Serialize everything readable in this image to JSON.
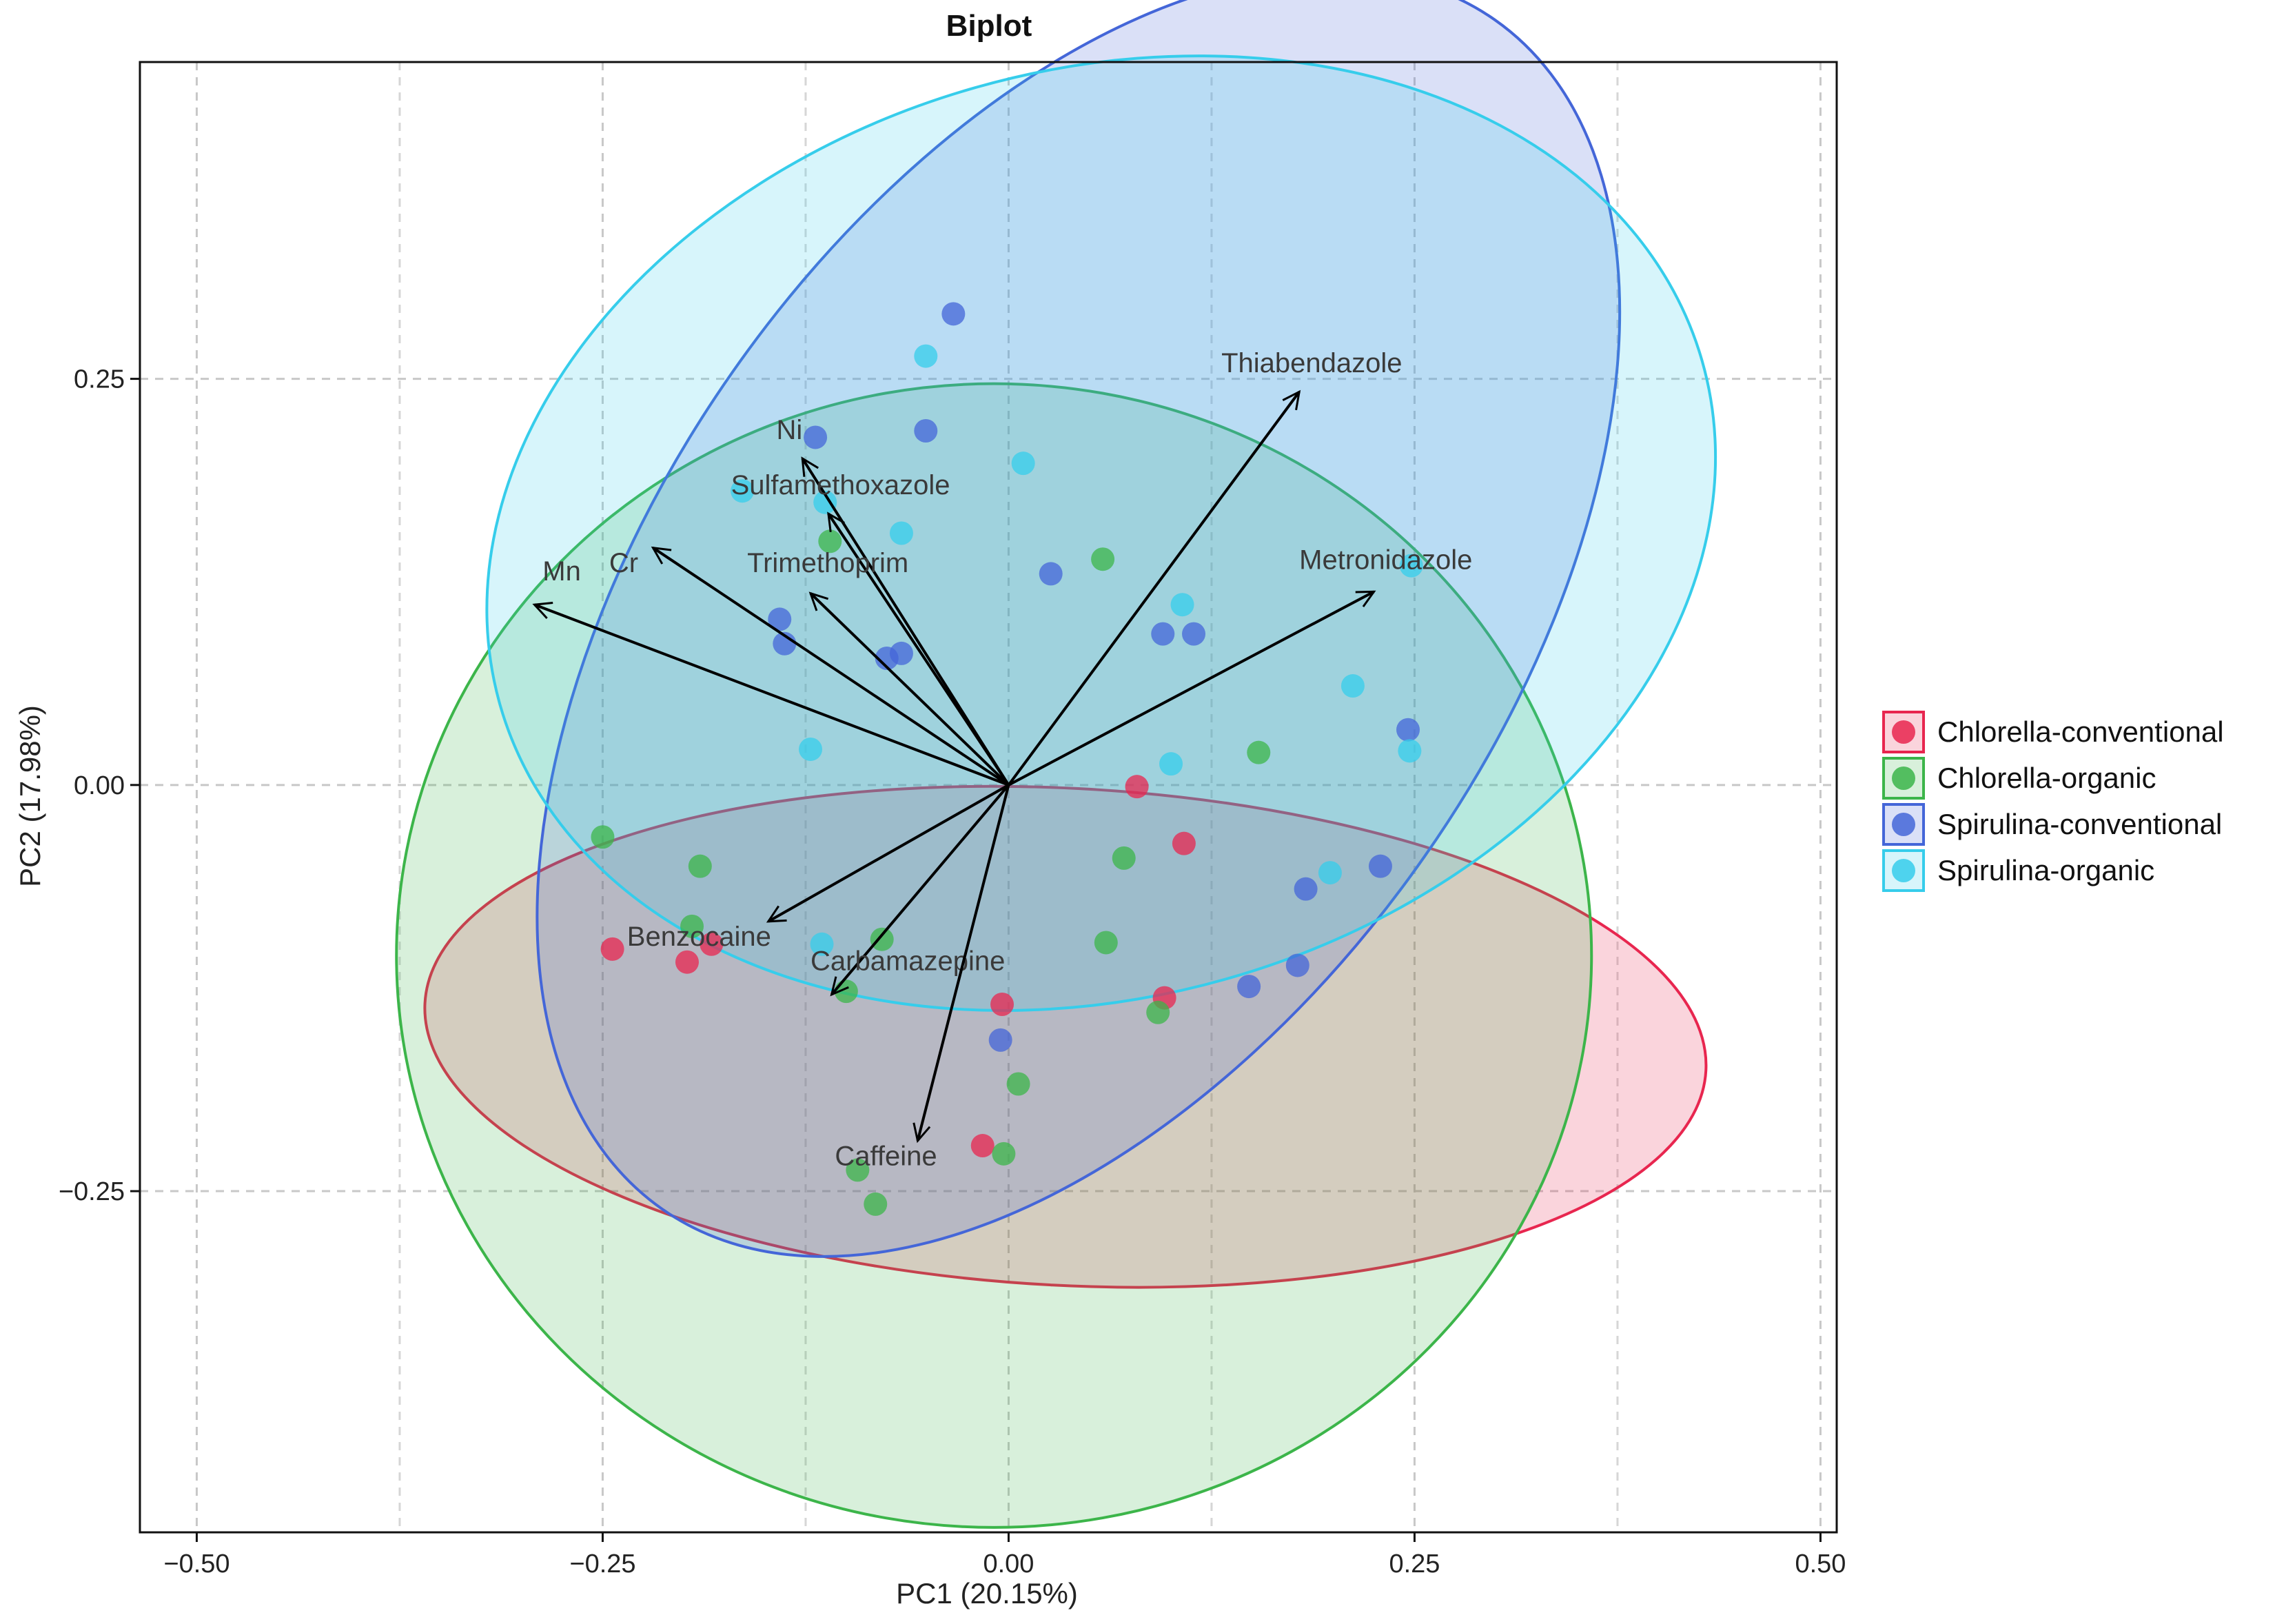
{
  "chart_data": {
    "type": "scatter",
    "title": "Biplot",
    "xlabel": "PC1 (20.15%)",
    "ylabel": "PC2 (17.98%)",
    "xlim": [
      -0.535,
      0.51
    ],
    "ylim": [
      -0.46,
      0.445
    ],
    "xticks": [
      -0.5,
      -0.25,
      0,
      0.25,
      0.5
    ],
    "xtick_labels": [
      "−0.50",
      "−0.25",
      "0.00",
      "0.25",
      "0.50"
    ],
    "yticks": [
      -0.25,
      0,
      0.25
    ],
    "ytick_labels": [
      "−0.25",
      "0.00",
      "0.25"
    ],
    "grid": true,
    "legend_position": "right",
    "series": [
      {
        "name": "Chlorella-conventional",
        "color": "#E8264F",
        "ellipse": {
          "cx": 0.035,
          "cy": -0.155,
          "rx": 0.395,
          "ry": 0.153,
          "angle": 3
        },
        "points": [
          [
            -0.244,
            -0.101
          ],
          [
            -0.198,
            -0.109
          ],
          [
            -0.183,
            -0.098
          ],
          [
            -0.016,
            -0.222
          ],
          [
            -0.004,
            -0.135
          ],
          [
            0.079,
            -0.001
          ],
          [
            0.108,
            -0.036
          ],
          [
            0.096,
            -0.131
          ]
        ]
      },
      {
        "name": "Chlorella-organic",
        "color": "#3CB54A",
        "ellipse": {
          "cx": -0.009,
          "cy": -0.105,
          "rx": 0.368,
          "ry": 0.352,
          "angle": 0
        },
        "points": [
          [
            -0.25,
            -0.032
          ],
          [
            -0.19,
            -0.05
          ],
          [
            -0.195,
            -0.087
          ],
          [
            -0.11,
            0.15
          ],
          [
            -0.1,
            -0.127
          ],
          [
            -0.093,
            -0.237
          ],
          [
            -0.078,
            -0.095
          ],
          [
            -0.082,
            -0.258
          ],
          [
            -0.003,
            -0.227
          ],
          [
            0.006,
            -0.184
          ],
          [
            0.058,
            0.139
          ],
          [
            0.06,
            -0.097
          ],
          [
            0.071,
            -0.045
          ],
          [
            0.092,
            -0.14
          ],
          [
            0.154,
            0.02
          ]
        ]
      },
      {
        "name": "Spirulina-conventional",
        "color": "#4466D8",
        "ellipse": {
          "cx": 0.043,
          "cy": 0.105,
          "rx": 0.447,
          "ry": 0.26,
          "angle": -55
        },
        "points": [
          [
            -0.119,
            0.214
          ],
          [
            -0.141,
            0.102
          ],
          [
            -0.138,
            0.087
          ],
          [
            -0.075,
            0.078
          ],
          [
            -0.066,
            0.081
          ],
          [
            -0.051,
            0.218
          ],
          [
            -0.034,
            0.29
          ],
          [
            0.026,
            0.13
          ],
          [
            0.095,
            0.093
          ],
          [
            0.114,
            0.093
          ],
          [
            0.148,
            -0.124
          ],
          [
            0.178,
            -0.111
          ],
          [
            0.183,
            -0.064
          ],
          [
            0.229,
            -0.05
          ],
          [
            0.246,
            0.034
          ],
          [
            -0.005,
            -0.157
          ]
        ]
      },
      {
        "name": "Spirulina-organic",
        "color": "#36CDEB",
        "ellipse": {
          "cx": 0.057,
          "cy": 0.155,
          "rx": 0.385,
          "ry": 0.285,
          "angle": -16
        },
        "points": [
          [
            -0.164,
            0.181
          ],
          [
            -0.113,
            0.174
          ],
          [
            -0.122,
            0.022
          ],
          [
            -0.115,
            -0.098
          ],
          [
            -0.066,
            0.155
          ],
          [
            -0.051,
            0.264
          ],
          [
            0.009,
            0.198
          ],
          [
            0.107,
            0.111
          ],
          [
            0.1,
            0.013
          ],
          [
            0.212,
            0.061
          ],
          [
            0.198,
            -0.054
          ],
          [
            0.248,
            0.135
          ],
          [
            0.247,
            0.021
          ]
        ]
      }
    ],
    "loadings": [
      {
        "name": "Ni",
        "x": -0.127,
        "y": 0.201,
        "label_x": -0.143,
        "label_y": 0.213
      },
      {
        "name": "Sulfamethoxazole",
        "x": -0.111,
        "y": 0.167,
        "label_x": -0.171,
        "label_y": 0.179
      },
      {
        "name": "Cr",
        "x": -0.219,
        "y": 0.146,
        "label_x": -0.246,
        "label_y": 0.131
      },
      {
        "name": "Mn",
        "x": -0.292,
        "y": 0.111,
        "label_x": -0.287,
        "label_y": 0.126
      },
      {
        "name": "Trimethoprim",
        "x": -0.122,
        "y": 0.118,
        "label_x": -0.161,
        "label_y": 0.131
      },
      {
        "name": "Thiabendazole",
        "x": 0.179,
        "y": 0.242,
        "label_x": 0.131,
        "label_y": 0.254
      },
      {
        "name": "Metronidazole",
        "x": 0.225,
        "y": 0.119,
        "label_x": 0.179,
        "label_y": 0.133
      },
      {
        "name": "Benzocaine",
        "x": -0.148,
        "y": -0.084,
        "label_x": -0.235,
        "label_y": -0.099
      },
      {
        "name": "Carbamazepine",
        "x": -0.109,
        "y": -0.129,
        "label_x": -0.122,
        "label_y": -0.114
      },
      {
        "name": "Caffeine",
        "x": -0.056,
        "y": -0.219,
        "label_x": -0.107,
        "label_y": -0.234
      }
    ]
  }
}
